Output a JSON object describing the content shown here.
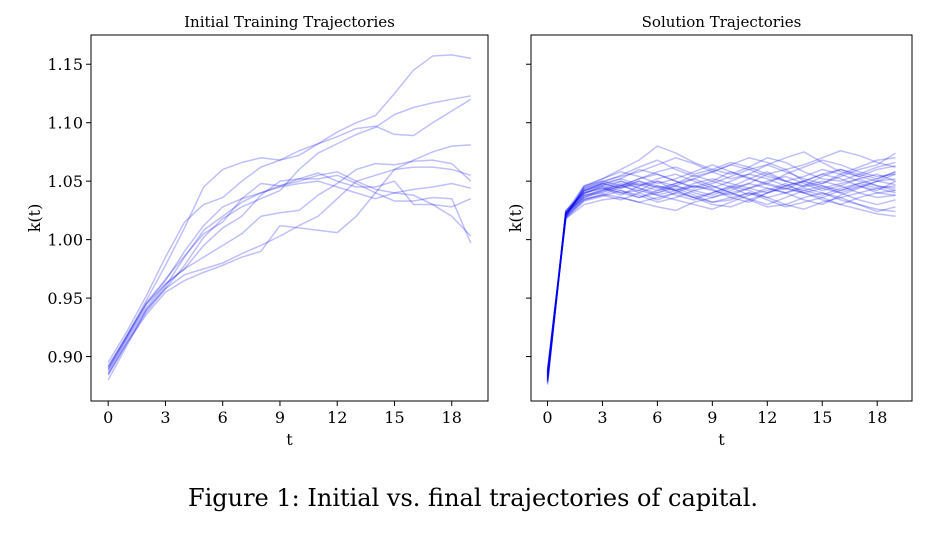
{
  "caption": "Figure 1: Initial vs. final trajectories of capital.",
  "colors": {
    "line": "#0000ee",
    "axes": "#000000"
  },
  "chart_data": [
    {
      "type": "line",
      "title": "Initial Training Trajectories",
      "xlabel": "t",
      "ylabel": "k(t)",
      "xlim": [
        -0.9,
        19.9
      ],
      "ylim": [
        0.862,
        1.175
      ],
      "xticks": [
        0,
        3,
        6,
        9,
        12,
        15,
        18
      ],
      "yticks": [
        0.9,
        0.95,
        1.0,
        1.05,
        1.1,
        1.15
      ],
      "ytick_labels": [
        "0.90",
        "0.95",
        "1.00",
        "1.05",
        "1.10",
        "1.15"
      ],
      "line_alpha": 0.25,
      "x": [
        0,
        1,
        2,
        3,
        4,
        5,
        6,
        7,
        8,
        9,
        10,
        11,
        12,
        13,
        14,
        15,
        16,
        17,
        18,
        19
      ],
      "series": [
        {
          "values": [
            0.89,
            0.918,
            0.948,
            0.978,
            1.01,
            1.045,
            1.06,
            1.066,
            1.07,
            1.068,
            1.072,
            1.082,
            1.092,
            1.1,
            1.106,
            1.125,
            1.145,
            1.157,
            1.158,
            1.155
          ]
        },
        {
          "values": [
            0.895,
            0.922,
            0.952,
            0.985,
            1.015,
            1.03,
            1.036,
            1.05,
            1.062,
            1.068,
            1.076,
            1.082,
            1.088,
            1.095,
            1.097,
            1.09,
            1.089,
            1.1,
            1.11,
            1.12
          ]
        },
        {
          "values": [
            0.885,
            0.912,
            0.938,
            0.958,
            0.978,
            1.002,
            1.018,
            1.028,
            1.035,
            1.042,
            1.06,
            1.074,
            1.082,
            1.09,
            1.096,
            1.107,
            1.113,
            1.117,
            1.12,
            1.123
          ]
        },
        {
          "values": [
            0.88,
            0.91,
            0.94,
            0.96,
            0.985,
            1.008,
            1.02,
            1.032,
            1.04,
            1.045,
            1.048,
            1.05,
            1.045,
            1.04,
            1.035,
            1.04,
            1.043,
            1.045,
            1.048,
            1.044
          ]
        },
        {
          "values": [
            0.892,
            0.918,
            0.945,
            0.965,
            0.99,
            1.012,
            1.028,
            1.035,
            1.04,
            1.046,
            1.05,
            1.055,
            1.058,
            1.05,
            1.043,
            1.04,
            1.038,
            1.03,
            1.02,
            1.003
          ]
        },
        {
          "values": [
            0.888,
            0.916,
            0.942,
            0.962,
            0.975,
            0.995,
            1.01,
            1.02,
            1.038,
            1.05,
            1.052,
            1.052,
            1.055,
            1.048,
            1.04,
            1.033,
            1.033,
            1.036,
            1.035,
            0.997
          ]
        },
        {
          "values": [
            0.886,
            0.914,
            0.94,
            0.958,
            0.97,
            0.975,
            0.98,
            0.988,
            0.995,
            1.003,
            1.012,
            1.02,
            1.035,
            1.05,
            1.055,
            1.06,
            1.068,
            1.075,
            1.08,
            1.081
          ]
        },
        {
          "values": [
            0.884,
            0.912,
            0.936,
            0.955,
            0.965,
            0.972,
            0.978,
            0.985,
            0.99,
            1.012,
            1.01,
            1.008,
            1.006,
            1.02,
            1.04,
            1.06,
            1.062,
            1.062,
            1.06,
            1.055
          ]
        },
        {
          "values": [
            0.889,
            0.917,
            0.945,
            0.962,
            0.975,
            0.985,
            0.995,
            1.005,
            1.02,
            1.023,
            1.025,
            1.038,
            1.048,
            1.06,
            1.065,
            1.064,
            1.067,
            1.068,
            1.065,
            1.05
          ]
        },
        {
          "values": [
            0.891,
            0.919,
            0.946,
            0.966,
            0.986,
            1.005,
            1.015,
            1.035,
            1.048,
            1.046,
            1.052,
            1.057,
            1.05,
            1.045,
            1.045,
            1.05,
            1.03,
            1.03,
            1.028,
            1.035
          ]
        }
      ]
    },
    {
      "type": "line",
      "title": "Solution Trajectories",
      "xlabel": "t",
      "ylabel": "k(t)",
      "xlim": [
        -0.9,
        19.9
      ],
      "ylim": [
        0.862,
        1.175
      ],
      "xticks": [
        0,
        3,
        6,
        9,
        12,
        15,
        18
      ],
      "yticks": [
        0.9,
        0.95,
        1.0,
        1.05,
        1.1,
        1.15
      ],
      "yticklabels_visible": false,
      "line_alpha": 0.25,
      "x": [
        0,
        1,
        2,
        3,
        4,
        5,
        6,
        7,
        8,
        9,
        10,
        11,
        12,
        13,
        14,
        15,
        16,
        17,
        18,
        19
      ],
      "series": [
        {
          "values": [
            0.88,
            1.022,
            1.04,
            1.045,
            1.04,
            1.042,
            1.05,
            1.042,
            1.036,
            1.04,
            1.045,
            1.038,
            1.042,
            1.048,
            1.04,
            1.036,
            1.042,
            1.046,
            1.04,
            1.038
          ]
        },
        {
          "values": [
            0.884,
            1.02,
            1.034,
            1.038,
            1.045,
            1.05,
            1.044,
            1.048,
            1.055,
            1.05,
            1.045,
            1.052,
            1.058,
            1.05,
            1.046,
            1.054,
            1.06,
            1.056,
            1.052,
            1.058
          ]
        },
        {
          "values": [
            0.876,
            1.024,
            1.046,
            1.052,
            1.06,
            1.068,
            1.08,
            1.074,
            1.066,
            1.06,
            1.056,
            1.062,
            1.07,
            1.066,
            1.058,
            1.052,
            1.05,
            1.056,
            1.062,
            1.066
          ]
        },
        {
          "values": [
            0.888,
            1.018,
            1.03,
            1.034,
            1.036,
            1.032,
            1.028,
            1.025,
            1.032,
            1.036,
            1.04,
            1.034,
            1.028,
            1.03,
            1.036,
            1.04,
            1.034,
            1.03,
            1.026,
            1.024
          ]
        },
        {
          "values": [
            0.882,
            1.021,
            1.042,
            1.048,
            1.052,
            1.047,
            1.042,
            1.046,
            1.052,
            1.058,
            1.064,
            1.06,
            1.054,
            1.05,
            1.045,
            1.048,
            1.054,
            1.06,
            1.064,
            1.074
          ]
        },
        {
          "values": [
            0.879,
            1.023,
            1.04,
            1.044,
            1.038,
            1.046,
            1.05,
            1.046,
            1.04,
            1.036,
            1.042,
            1.048,
            1.056,
            1.06,
            1.05,
            1.044,
            1.04,
            1.045,
            1.05,
            1.047
          ]
        },
        {
          "values": [
            0.886,
            1.019,
            1.036,
            1.042,
            1.047,
            1.04,
            1.034,
            1.04,
            1.046,
            1.043,
            1.036,
            1.032,
            1.04,
            1.044,
            1.04,
            1.034,
            1.03,
            1.036,
            1.04,
            1.042
          ]
        },
        {
          "values": [
            0.883,
            1.022,
            1.044,
            1.05,
            1.054,
            1.058,
            1.064,
            1.07,
            1.065,
            1.058,
            1.052,
            1.056,
            1.064,
            1.07,
            1.075,
            1.066,
            1.058,
            1.054,
            1.06,
            1.063
          ]
        },
        {
          "values": [
            0.878,
            1.025,
            1.039,
            1.046,
            1.042,
            1.036,
            1.04,
            1.044,
            1.038,
            1.032,
            1.034,
            1.04,
            1.036,
            1.03,
            1.026,
            1.032,
            1.036,
            1.03,
            1.024,
            1.028
          ]
        },
        {
          "values": [
            0.887,
            1.02,
            1.038,
            1.04,
            1.046,
            1.052,
            1.056,
            1.05,
            1.045,
            1.05,
            1.058,
            1.053,
            1.047,
            1.043,
            1.05,
            1.056,
            1.052,
            1.046,
            1.042,
            1.05
          ]
        },
        {
          "values": [
            0.881,
            1.021,
            1.043,
            1.048,
            1.044,
            1.048,
            1.045,
            1.038,
            1.034,
            1.04,
            1.046,
            1.042,
            1.036,
            1.04,
            1.046,
            1.05,
            1.046,
            1.04,
            1.036,
            1.038
          ]
        },
        {
          "values": [
            0.885,
            1.023,
            1.037,
            1.043,
            1.05,
            1.044,
            1.038,
            1.034,
            1.03,
            1.026,
            1.032,
            1.038,
            1.044,
            1.04,
            1.034,
            1.03,
            1.038,
            1.044,
            1.05,
            1.052
          ]
        },
        {
          "values": [
            0.88,
            1.019,
            1.045,
            1.052,
            1.058,
            1.054,
            1.048,
            1.052,
            1.058,
            1.064,
            1.058,
            1.052,
            1.048,
            1.056,
            1.062,
            1.068,
            1.064,
            1.058,
            1.054,
            1.056
          ]
        },
        {
          "values": [
            0.884,
            1.022,
            1.035,
            1.038,
            1.034,
            1.04,
            1.046,
            1.042,
            1.036,
            1.03,
            1.028,
            1.034,
            1.04,
            1.046,
            1.042,
            1.038,
            1.044,
            1.048,
            1.044,
            1.04
          ]
        },
        {
          "values": [
            0.877,
            1.024,
            1.041,
            1.047,
            1.052,
            1.06,
            1.056,
            1.05,
            1.044,
            1.048,
            1.054,
            1.06,
            1.064,
            1.058,
            1.052,
            1.048,
            1.056,
            1.062,
            1.068,
            1.07
          ]
        },
        {
          "values": [
            0.889,
            1.018,
            1.033,
            1.037,
            1.042,
            1.038,
            1.032,
            1.036,
            1.042,
            1.046,
            1.04,
            1.035,
            1.03,
            1.036,
            1.042,
            1.046,
            1.04,
            1.034,
            1.03,
            1.034
          ]
        },
        {
          "values": [
            0.882,
            1.021,
            1.042,
            1.046,
            1.05,
            1.046,
            1.052,
            1.056,
            1.05,
            1.044,
            1.05,
            1.056,
            1.052,
            1.046,
            1.05,
            1.056,
            1.06,
            1.054,
            1.05,
            1.056
          ]
        },
        {
          "values": [
            0.886,
            1.022,
            1.04,
            1.044,
            1.04,
            1.036,
            1.042,
            1.048,
            1.052,
            1.046,
            1.04,
            1.044,
            1.05,
            1.054,
            1.048,
            1.042,
            1.046,
            1.052,
            1.056,
            1.05
          ]
        },
        {
          "values": [
            0.879,
            1.02,
            1.046,
            1.05,
            1.046,
            1.052,
            1.058,
            1.062,
            1.056,
            1.06,
            1.066,
            1.062,
            1.056,
            1.05,
            1.054,
            1.06,
            1.056,
            1.05,
            1.046,
            1.044
          ]
        },
        {
          "values": [
            0.883,
            1.023,
            1.036,
            1.041,
            1.046,
            1.042,
            1.038,
            1.042,
            1.046,
            1.042,
            1.038,
            1.044,
            1.048,
            1.044,
            1.04,
            1.044,
            1.048,
            1.052,
            1.046,
            1.042
          ]
        },
        {
          "values": [
            0.881,
            1.022,
            1.044,
            1.049,
            1.055,
            1.062,
            1.068,
            1.06,
            1.054,
            1.058,
            1.064,
            1.07,
            1.066,
            1.06,
            1.064,
            1.07,
            1.076,
            1.072,
            1.066,
            1.062
          ]
        },
        {
          "values": [
            0.887,
            1.019,
            1.034,
            1.039,
            1.036,
            1.032,
            1.036,
            1.04,
            1.036,
            1.032,
            1.036,
            1.04,
            1.034,
            1.028,
            1.032,
            1.036,
            1.03,
            1.026,
            1.022,
            1.02
          ]
        },
        {
          "values": [
            0.878,
            1.024,
            1.042,
            1.048,
            1.044,
            1.05,
            1.046,
            1.042,
            1.048,
            1.052,
            1.048,
            1.044,
            1.04,
            1.046,
            1.05,
            1.046,
            1.042,
            1.048,
            1.052,
            1.058
          ]
        },
        {
          "values": [
            0.885,
            1.021,
            1.038,
            1.042,
            1.048,
            1.044,
            1.04,
            1.046,
            1.042,
            1.038,
            1.044,
            1.048,
            1.044,
            1.04,
            1.044,
            1.04,
            1.036,
            1.04,
            1.044,
            1.046
          ]
        }
      ]
    }
  ]
}
